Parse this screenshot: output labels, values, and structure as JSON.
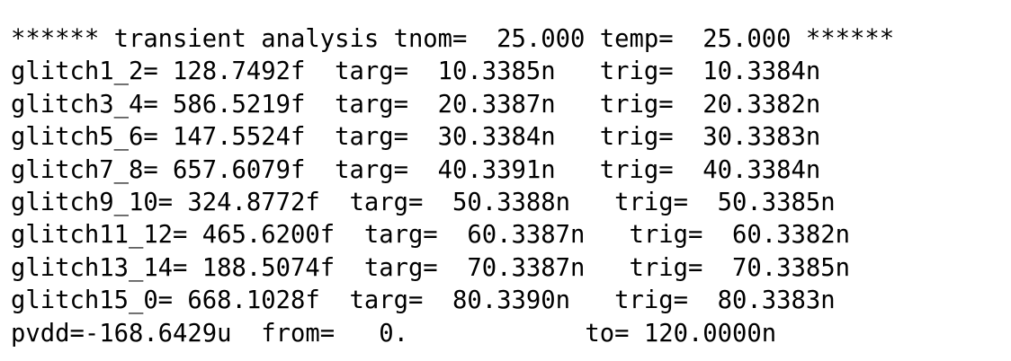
{
  "output": {
    "lines": [
      "****** transient analysis tnom=  25.000 temp=  25.000 ******",
      "glitch1_2= 128.7492f  targ=  10.3385n   trig=  10.3384n",
      "glitch3_4= 586.5219f  targ=  20.3387n   trig=  20.3382n",
      "glitch5_6= 147.5524f  targ=  30.3384n   trig=  30.3383n",
      "glitch7_8= 657.6079f  targ=  40.3391n   trig=  40.3384n",
      "glitch9_10= 324.8772f  targ=  50.3388n   trig=  50.3385n",
      "glitch11_12= 465.6200f  targ=  60.3387n   trig=  60.3382n",
      "glitch13_14= 188.5074f  targ=  70.3387n   trig=  70.3385n",
      "glitch15_0= 668.1028f  targ=  80.3390n   trig=  80.3383n",
      "pvdd=-168.6429u  from=   0.            to= 120.0000n"
    ]
  }
}
